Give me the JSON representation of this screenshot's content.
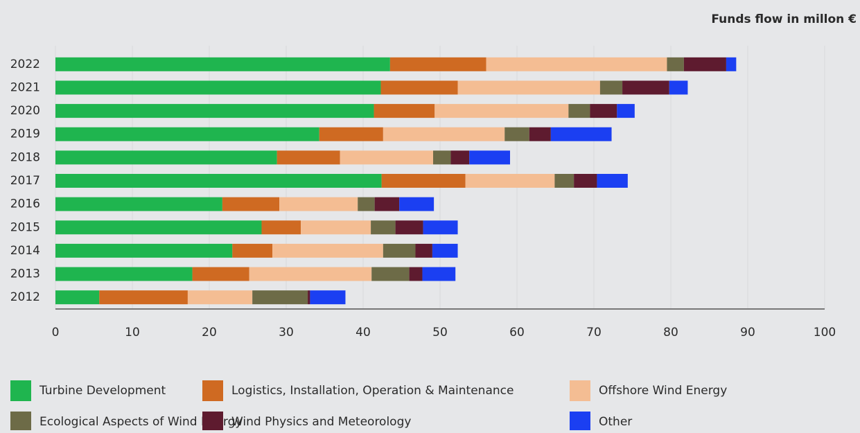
{
  "chart_data": {
    "type": "stacked_barh",
    "axis_label": "Funds flow in millon €",
    "categories": [
      "2022",
      "2021",
      "2020",
      "2019",
      "2018",
      "2017",
      "2016",
      "2015",
      "2014",
      "2013",
      "2012"
    ],
    "series": [
      {
        "name": "Turbine Development",
        "color": "#1fb54f",
        "values": [
          43.5,
          42.3,
          41.4,
          34.3,
          28.8,
          42.4,
          21.7,
          26.8,
          23.0,
          17.8,
          5.7
        ]
      },
      {
        "name": "Logistics, Installation, Operation & Maintenance",
        "color": "#cf6a22",
        "values": [
          12.5,
          10.0,
          7.9,
          8.3,
          8.2,
          10.9,
          7.4,
          5.1,
          5.2,
          7.4,
          11.5
        ]
      },
      {
        "name": "Offshore Wind Energy",
        "color": "#f4bd93",
        "values": [
          23.5,
          18.5,
          17.4,
          15.8,
          12.1,
          11.6,
          10.2,
          9.1,
          14.4,
          15.9,
          8.4
        ]
      },
      {
        "name": "Ecological Aspects of Wind Energy",
        "color": "#6d6b47",
        "values": [
          2.2,
          2.9,
          2.8,
          3.2,
          2.3,
          2.5,
          2.2,
          3.2,
          4.2,
          4.9,
          7.2
        ]
      },
      {
        "name": "Wind Physics and Meteorology",
        "color": "#5e1b2f",
        "values": [
          5.5,
          6.1,
          3.5,
          2.8,
          2.4,
          3.0,
          3.2,
          3.6,
          2.2,
          1.7,
          0.3
        ]
      },
      {
        "name": "Other",
        "color": "#1b3ff2",
        "values": [
          1.3,
          2.4,
          2.3,
          7.9,
          5.3,
          4.0,
          4.5,
          4.5,
          3.3,
          4.3,
          4.6
        ]
      }
    ],
    "xlim": [
      0,
      100
    ],
    "xticks": [
      0,
      10,
      20,
      30,
      40,
      50,
      60,
      70,
      80,
      90,
      100
    ],
    "grid": true
  }
}
